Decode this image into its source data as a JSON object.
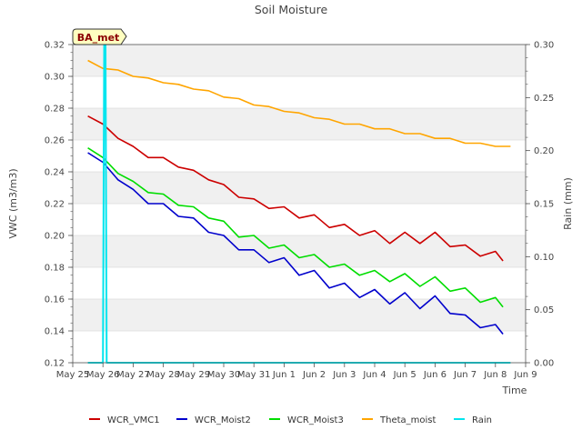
{
  "chart_data": {
    "type": "line",
    "title": "Soil Moisture",
    "xlabel": "Time",
    "ylabel": "VWC (m3/m3)",
    "y2label": "Rain (mm)",
    "station_label": "BA_met",
    "x_ticks": [
      "May 25",
      "May 26",
      "May 27",
      "May 28",
      "May 29",
      "May 30",
      "May 31",
      "Jun 1",
      "Jun 2",
      "Jun 3",
      "Jun 4",
      "Jun 5",
      "Jun 6",
      "Jun 7",
      "Jun 8",
      "Jun 9"
    ],
    "xlim": [
      "May 25",
      "Jun 9"
    ],
    "ylim": [
      0.12,
      0.32
    ],
    "y_ticks": [
      "0.12",
      "0.14",
      "0.16",
      "0.18",
      "0.20",
      "0.22",
      "0.24",
      "0.26",
      "0.28",
      "0.30",
      "0.32"
    ],
    "y2lim": [
      0.0,
      0.3
    ],
    "y2_ticks": [
      "0.00",
      "0.05",
      "0.10",
      "0.15",
      "0.20",
      "0.25",
      "0.30"
    ],
    "grid": "horizontal bands",
    "legend_position": "bottom",
    "series": [
      {
        "name": "WCR_VMC1",
        "color": "#cc0000",
        "axis": "left",
        "x": [
          "May 25 12:00",
          "May 26 00:00",
          "May 26 12:00",
          "May 27 00:00",
          "May 27 12:00",
          "May 28 00:00",
          "May 28 12:00",
          "May 29 00:00",
          "May 29 12:00",
          "May 30 00:00",
          "May 30 12:00",
          "May 31 00:00",
          "May 31 12:00",
          "Jun 1 00:00",
          "Jun 1 12:00",
          "Jun 2 00:00",
          "Jun 2 12:00",
          "Jun 3 00:00",
          "Jun 3 12:00",
          "Jun 4 00:00",
          "Jun 4 12:00",
          "Jun 5 00:00",
          "Jun 5 12:00",
          "Jun 6 00:00",
          "Jun 6 12:00",
          "Jun 7 00:00",
          "Jun 7 12:00",
          "Jun 8 00:00",
          "Jun 8 06:00"
        ],
        "values": [
          0.275,
          0.27,
          0.261,
          0.256,
          0.249,
          0.249,
          0.243,
          0.241,
          0.235,
          0.232,
          0.224,
          0.223,
          0.217,
          0.218,
          0.211,
          0.213,
          0.205,
          0.207,
          0.2,
          0.203,
          0.195,
          0.202,
          0.195,
          0.202,
          0.193,
          0.194,
          0.187,
          0.19,
          0.184
        ]
      },
      {
        "name": "WCR_Moist2",
        "color": "#0000cc",
        "axis": "left",
        "x": [
          "May 25 12:00",
          "May 26 00:00",
          "May 26 12:00",
          "May 27 00:00",
          "May 27 12:00",
          "May 28 00:00",
          "May 28 12:00",
          "May 29 00:00",
          "May 29 12:00",
          "May 30 00:00",
          "May 30 12:00",
          "May 31 00:00",
          "May 31 12:00",
          "Jun 1 00:00",
          "Jun 1 12:00",
          "Jun 2 00:00",
          "Jun 2 12:00",
          "Jun 3 00:00",
          "Jun 3 12:00",
          "Jun 4 00:00",
          "Jun 4 12:00",
          "Jun 5 00:00",
          "Jun 5 12:00",
          "Jun 6 00:00",
          "Jun 6 12:00",
          "Jun 7 00:00",
          "Jun 7 12:00",
          "Jun 8 00:00",
          "Jun 8 06:00"
        ],
        "values": [
          0.252,
          0.246,
          0.235,
          0.229,
          0.22,
          0.22,
          0.212,
          0.211,
          0.202,
          0.2,
          0.191,
          0.191,
          0.183,
          0.186,
          0.175,
          0.178,
          0.167,
          0.17,
          0.161,
          0.166,
          0.157,
          0.164,
          0.154,
          0.162,
          0.151,
          0.15,
          0.142,
          0.144,
          0.138
        ]
      },
      {
        "name": "WCR_Moist3",
        "color": "#00dd00",
        "axis": "left",
        "x": [
          "May 25 12:00",
          "May 26 00:00",
          "May 26 12:00",
          "May 27 00:00",
          "May 27 12:00",
          "May 28 00:00",
          "May 28 12:00",
          "May 29 00:00",
          "May 29 12:00",
          "May 30 00:00",
          "May 30 12:00",
          "May 31 00:00",
          "May 31 12:00",
          "Jun 1 00:00",
          "Jun 1 12:00",
          "Jun 2 00:00",
          "Jun 2 12:00",
          "Jun 3 00:00",
          "Jun 3 12:00",
          "Jun 4 00:00",
          "Jun 4 12:00",
          "Jun 5 00:00",
          "Jun 5 12:00",
          "Jun 6 00:00",
          "Jun 6 12:00",
          "Jun 7 00:00",
          "Jun 7 12:00",
          "Jun 8 00:00",
          "Jun 8 06:00"
        ],
        "values": [
          0.255,
          0.249,
          0.239,
          0.234,
          0.227,
          0.226,
          0.219,
          0.218,
          0.211,
          0.209,
          0.199,
          0.2,
          0.192,
          0.194,
          0.186,
          0.188,
          0.18,
          0.182,
          0.175,
          0.178,
          0.171,
          0.176,
          0.168,
          0.174,
          0.165,
          0.167,
          0.158,
          0.161,
          0.155
        ]
      },
      {
        "name": "Theta_moist",
        "color": "#ffa500",
        "axis": "left",
        "x": [
          "May 25 12:00",
          "May 26 00:00",
          "May 26 12:00",
          "May 27 00:00",
          "May 27 12:00",
          "May 28 00:00",
          "May 28 12:00",
          "May 29 00:00",
          "May 29 12:00",
          "May 30 00:00",
          "May 30 12:00",
          "May 31 00:00",
          "May 31 12:00",
          "Jun 1 00:00",
          "Jun 1 12:00",
          "Jun 2 00:00",
          "Jun 2 12:00",
          "Jun 3 00:00",
          "Jun 3 12:00",
          "Jun 4 00:00",
          "Jun 4 12:00",
          "Jun 5 00:00",
          "Jun 5 12:00",
          "Jun 6 00:00",
          "Jun 6 12:00",
          "Jun 7 00:00",
          "Jun 7 12:00",
          "Jun 8 00:00",
          "Jun 8 12:00"
        ],
        "values": [
          0.31,
          0.305,
          0.304,
          0.3,
          0.299,
          0.296,
          0.295,
          0.292,
          0.291,
          0.287,
          0.286,
          0.282,
          0.281,
          0.278,
          0.277,
          0.274,
          0.273,
          0.27,
          0.27,
          0.267,
          0.267,
          0.264,
          0.264,
          0.261,
          0.261,
          0.258,
          0.258,
          0.256,
          0.256
        ]
      },
      {
        "name": "Rain",
        "color": "#00e5ee",
        "axis": "right",
        "x": [
          "May 25 12:00",
          "May 26 00:00",
          "May 26 01:00",
          "May 26 02:00",
          "May 26 03:00",
          "Jun 8 12:00"
        ],
        "values": [
          0.0,
          0.0,
          0.3,
          0.3,
          0.0,
          0.0
        ]
      }
    ]
  }
}
